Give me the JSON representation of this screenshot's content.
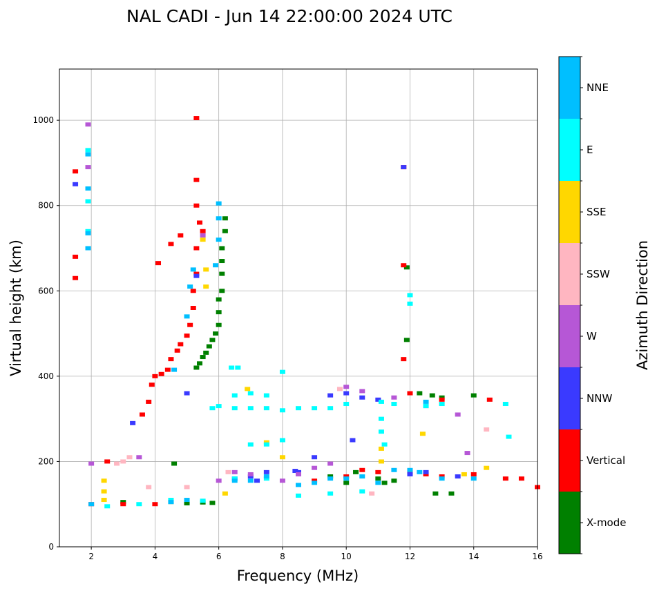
{
  "chart_data": {
    "type": "scatter",
    "title": "NAL CADI - Jun 14 22:00:00 2024 UTC",
    "xlabel": "Frequency (MHz)",
    "ylabel": "Virtual height (km)",
    "xlim": [
      1,
      16
    ],
    "ylim": [
      0,
      1120
    ],
    "xticks": [
      2,
      4,
      6,
      8,
      10,
      12,
      14,
      16
    ],
    "yticks": [
      0,
      200,
      400,
      600,
      800,
      1000
    ],
    "grid": true,
    "colorbar": {
      "label": "Azimuth Direction",
      "position": "right",
      "categories": [
        {
          "name": "X-mode",
          "color": "#008000"
        },
        {
          "name": "Vertical",
          "color": "#ff0000"
        },
        {
          "name": "NNW",
          "color": "#3a3aff"
        },
        {
          "name": "W",
          "color": "#b657d6"
        },
        {
          "name": "SSW",
          "color": "#ffb6c1"
        },
        {
          "name": "SSE",
          "color": "#ffd700"
        },
        {
          "name": "E",
          "color": "#00ffff"
        },
        {
          "name": "NNE",
          "color": "#00bfff"
        }
      ]
    },
    "series": [
      {
        "name": "X-mode",
        "points": [
          [
            5.3,
            420
          ],
          [
            5.4,
            430
          ],
          [
            5.5,
            445
          ],
          [
            5.6,
            455
          ],
          [
            5.7,
            470
          ],
          [
            5.8,
            485
          ],
          [
            5.9,
            500
          ],
          [
            6.0,
            520
          ],
          [
            6.0,
            550
          ],
          [
            6.0,
            580
          ],
          [
            6.1,
            600
          ],
          [
            6.1,
            640
          ],
          [
            6.1,
            670
          ],
          [
            6.1,
            700
          ],
          [
            6.2,
            740
          ],
          [
            6.2,
            770
          ],
          [
            4.5,
            105
          ],
          [
            5.0,
            102
          ],
          [
            5.5,
            104
          ],
          [
            5.8,
            103
          ],
          [
            3.0,
            105
          ],
          [
            9.5,
            165
          ],
          [
            10.0,
            150
          ],
          [
            10.3,
            175
          ],
          [
            11.0,
            160
          ],
          [
            11.5,
            155
          ],
          [
            12.3,
            360
          ],
          [
            12.7,
            355
          ],
          [
            13.0,
            350
          ],
          [
            12.8,
            125
          ],
          [
            13.3,
            125
          ],
          [
            14.0,
            355
          ],
          [
            11.9,
            655
          ],
          [
            11.9,
            485
          ],
          [
            11.2,
            150
          ],
          [
            4.6,
            195
          ]
        ]
      },
      {
        "name": "Vertical",
        "points": [
          [
            3.6,
            310
          ],
          [
            3.8,
            340
          ],
          [
            3.9,
            380
          ],
          [
            4.0,
            400
          ],
          [
            4.2,
            405
          ],
          [
            4.4,
            415
          ],
          [
            4.5,
            440
          ],
          [
            4.7,
            460
          ],
          [
            4.8,
            475
          ],
          [
            5.0,
            495
          ],
          [
            5.1,
            520
          ],
          [
            5.2,
            560
          ],
          [
            5.2,
            600
          ],
          [
            5.3,
            640
          ],
          [
            5.3,
            700
          ],
          [
            5.4,
            760
          ],
          [
            5.3,
            800
          ],
          [
            5.3,
            860
          ],
          [
            5.3,
            1005
          ],
          [
            5.5,
            740
          ],
          [
            1.5,
            630
          ],
          [
            1.5,
            680
          ],
          [
            1.5,
            880
          ],
          [
            4.1,
            665
          ],
          [
            4.5,
            710
          ],
          [
            4.8,
            730
          ],
          [
            2.0,
            100
          ],
          [
            3.0,
            100
          ],
          [
            4.0,
            100
          ],
          [
            2.5,
            200
          ],
          [
            9.0,
            155
          ],
          [
            10.0,
            165
          ],
          [
            10.5,
            180
          ],
          [
            11.0,
            175
          ],
          [
            12.0,
            175
          ],
          [
            12.5,
            170
          ],
          [
            13.0,
            165
          ],
          [
            14.0,
            170
          ],
          [
            15.0,
            160
          ],
          [
            15.5,
            160
          ],
          [
            16.0,
            140
          ],
          [
            12.0,
            360
          ],
          [
            13.0,
            345
          ],
          [
            11.8,
            890
          ],
          [
            11.8,
            440
          ],
          [
            11.8,
            660
          ],
          [
            14.5,
            345
          ]
        ]
      },
      {
        "name": "NNW",
        "points": [
          [
            3.3,
            290
          ],
          [
            5.3,
            635
          ],
          [
            6.5,
            160
          ],
          [
            7.0,
            165
          ],
          [
            7.5,
            175
          ],
          [
            8.5,
            175
          ],
          [
            9.5,
            355
          ],
          [
            10.0,
            360
          ],
          [
            10.5,
            350
          ],
          [
            11.0,
            345
          ],
          [
            10.2,
            250
          ],
          [
            12.0,
            170
          ],
          [
            12.5,
            175
          ],
          [
            13.5,
            165
          ],
          [
            1.5,
            850
          ],
          [
            5.0,
            360
          ],
          [
            7.2,
            155
          ],
          [
            9.0,
            210
          ],
          [
            11.8,
            890
          ],
          [
            8.4,
            178
          ]
        ]
      },
      {
        "name": "W",
        "points": [
          [
            1.9,
            990
          ],
          [
            1.9,
            890
          ],
          [
            5.5,
            730
          ],
          [
            6.5,
            175
          ],
          [
            7.0,
            170
          ],
          [
            8.5,
            170
          ],
          [
            9.0,
            185
          ],
          [
            9.5,
            195
          ],
          [
            10.0,
            375
          ],
          [
            10.5,
            365
          ],
          [
            13.5,
            310
          ],
          [
            13.8,
            220
          ],
          [
            3.5,
            210
          ],
          [
            2.0,
            195
          ],
          [
            6.0,
            155
          ],
          [
            8.0,
            155
          ],
          [
            11.5,
            350
          ],
          [
            12.5,
            330
          ]
        ]
      },
      {
        "name": "SSW",
        "points": [
          [
            2.8,
            195
          ],
          [
            3.0,
            200
          ],
          [
            3.8,
            140
          ],
          [
            10.8,
            125
          ],
          [
            14.4,
            275
          ],
          [
            3.2,
            210
          ],
          [
            6.3,
            175
          ],
          [
            13.0,
            335
          ],
          [
            9.8,
            370
          ],
          [
            5.0,
            140
          ]
        ]
      },
      {
        "name": "SSE",
        "points": [
          [
            2.4,
            110
          ],
          [
            2.4,
            130
          ],
          [
            2.4,
            155
          ],
          [
            5.5,
            720
          ],
          [
            5.6,
            650
          ],
          [
            5.6,
            610
          ],
          [
            6.2,
            125
          ],
          [
            8.0,
            210
          ],
          [
            11.1,
            200
          ],
          [
            11.1,
            230
          ],
          [
            13.7,
            170
          ],
          [
            14.4,
            185
          ],
          [
            12.4,
            265
          ],
          [
            7.5,
            245
          ],
          [
            6.9,
            370
          ]
        ]
      },
      {
        "name": "E",
        "points": [
          [
            6.4,
            420
          ],
          [
            6.6,
            420
          ],
          [
            5.8,
            325
          ],
          [
            6.0,
            330
          ],
          [
            6.5,
            325
          ],
          [
            7.0,
            325
          ],
          [
            7.5,
            325
          ],
          [
            8.0,
            320
          ],
          [
            8.5,
            325
          ],
          [
            9.0,
            325
          ],
          [
            9.5,
            325
          ],
          [
            6.5,
            355
          ],
          [
            7.0,
            360
          ],
          [
            7.5,
            355
          ],
          [
            8.0,
            410
          ],
          [
            7.0,
            240
          ],
          [
            7.5,
            240
          ],
          [
            8.0,
            250
          ],
          [
            11.1,
            340
          ],
          [
            11.1,
            300
          ],
          [
            11.1,
            270
          ],
          [
            11.2,
            240
          ],
          [
            10.0,
            335
          ],
          [
            11.5,
            335
          ],
          [
            12.5,
            330
          ],
          [
            13.0,
            335
          ],
          [
            15.0,
            335
          ],
          [
            15.1,
            258
          ],
          [
            1.9,
            740
          ],
          [
            1.9,
            810
          ],
          [
            1.9,
            930
          ],
          [
            2.5,
            95
          ],
          [
            3.5,
            100
          ],
          [
            4.5,
            110
          ],
          [
            5.5,
            108
          ],
          [
            6.5,
            160
          ],
          [
            7.5,
            160
          ],
          [
            8.5,
            120
          ],
          [
            9.5,
            125
          ],
          [
            10.5,
            130
          ],
          [
            12.0,
            590
          ],
          [
            12.0,
            570
          ]
        ]
      },
      {
        "name": "NNE",
        "points": [
          [
            1.9,
            700
          ],
          [
            1.9,
            735
          ],
          [
            1.9,
            840
          ],
          [
            1.9,
            920
          ],
          [
            5.0,
            540
          ],
          [
            5.1,
            610
          ],
          [
            5.2,
            650
          ],
          [
            5.9,
            660
          ],
          [
            6.0,
            720
          ],
          [
            6.0,
            770
          ],
          [
            6.0,
            805
          ],
          [
            6.5,
            155
          ],
          [
            7.0,
            155
          ],
          [
            7.5,
            165
          ],
          [
            8.5,
            145
          ],
          [
            9.0,
            150
          ],
          [
            9.5,
            160
          ],
          [
            10.0,
            160
          ],
          [
            10.5,
            165
          ],
          [
            11.0,
            150
          ],
          [
            11.5,
            180
          ],
          [
            12.0,
            180
          ],
          [
            12.3,
            175
          ],
          [
            13.0,
            160
          ],
          [
            14.0,
            160
          ],
          [
            2.0,
            100
          ],
          [
            4.5,
            105
          ],
          [
            5.0,
            110
          ],
          [
            12.5,
            340
          ],
          [
            4.6,
            415
          ]
        ]
      }
    ]
  }
}
